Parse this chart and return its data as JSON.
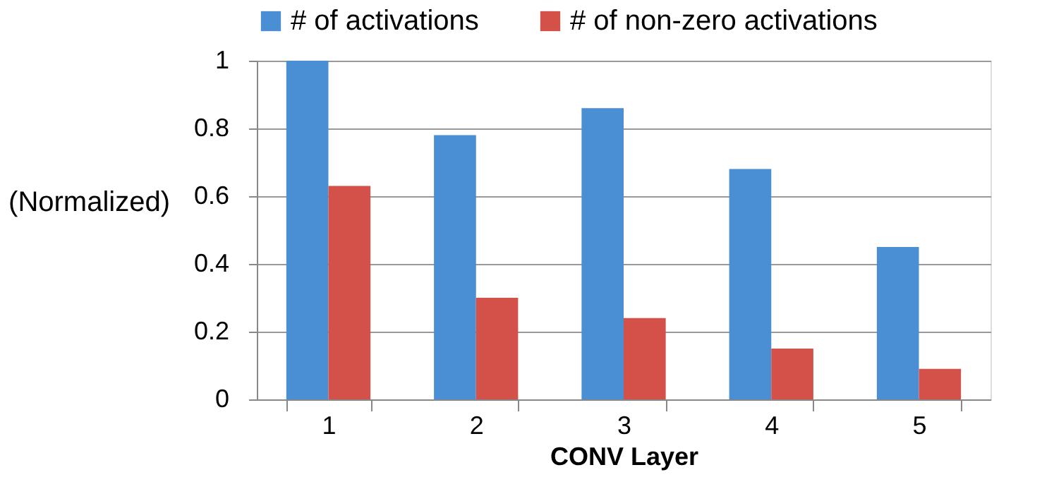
{
  "chart_data": {
    "type": "bar",
    "xlabel": "CONV Layer",
    "ylabel": "(Normalized)",
    "categories": [
      "1",
      "2",
      "3",
      "4",
      "5"
    ],
    "series": [
      {
        "name": "# of activations",
        "color": "#4a8fd4",
        "values": [
          1.0,
          0.78,
          0.86,
          0.68,
          0.45
        ]
      },
      {
        "name": "# of non-zero activations",
        "color": "#d4514a",
        "values": [
          0.63,
          0.3,
          0.24,
          0.15,
          0.09
        ]
      }
    ],
    "ylim": [
      0,
      1
    ],
    "yticks": [
      0,
      0.2,
      0.4,
      0.6,
      0.8,
      1
    ],
    "grid": "y",
    "legend": "top"
  }
}
